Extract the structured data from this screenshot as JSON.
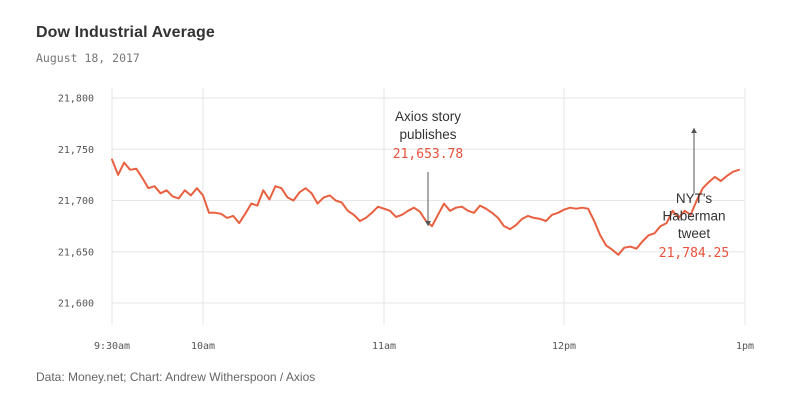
{
  "header": {
    "title": "Dow Industrial Average",
    "subtitle": "August 18, 2017"
  },
  "footer": {
    "source": "Data: Money.net; Chart: Andrew Witherspoon / Axios"
  },
  "colors": {
    "line": "#e8603f",
    "accent_text": "#e8513a",
    "grid": "#e6e6e6"
  },
  "chart_data": {
    "type": "line",
    "title": "Dow Industrial Average",
    "subtitle": "August 18, 2017",
    "ylim": [
      21580,
      21810
    ],
    "grid": true,
    "y_ticks": [
      {
        "value": 21600,
        "label": "21,600"
      },
      {
        "value": 21650,
        "label": "21,650"
      },
      {
        "value": 21700,
        "label": "21,700"
      },
      {
        "value": 21750,
        "label": "21,750"
      },
      {
        "value": 21800,
        "label": "21,800"
      }
    ],
    "x_ticks": [
      {
        "value": "09:30",
        "label": "9:30am"
      },
      {
        "value": "10:00",
        "label": "10am"
      },
      {
        "value": "11:00",
        "label": "11am"
      },
      {
        "value": "12:00",
        "label": "12pm"
      },
      {
        "value": "13:00",
        "label": "1pm"
      }
    ],
    "xlim": [
      "09:30",
      "13:00"
    ],
    "series": [
      {
        "values": [
          [
            "09:30",
            21740
          ],
          [
            "09:32",
            21725
          ],
          [
            "09:34",
            21737
          ],
          [
            "09:36",
            21730
          ],
          [
            "09:38",
            21731
          ],
          [
            "09:40",
            21722
          ],
          [
            "09:42",
            21712
          ],
          [
            "09:44",
            21714
          ],
          [
            "09:46",
            21707
          ],
          [
            "09:48",
            21710
          ],
          [
            "09:50",
            21704
          ],
          [
            "09:52",
            21702
          ],
          [
            "09:54",
            21710
          ],
          [
            "09:56",
            21705
          ],
          [
            "09:58",
            21712
          ],
          [
            "10:00",
            21705
          ],
          [
            "10:02",
            21688
          ],
          [
            "10:04",
            21688
          ],
          [
            "10:06",
            21687
          ],
          [
            "10:08",
            21683
          ],
          [
            "10:10",
            21685
          ],
          [
            "10:12",
            21678
          ],
          [
            "10:14",
            21687
          ],
          [
            "10:16",
            21697
          ],
          [
            "10:18",
            21695
          ],
          [
            "10:20",
            21710
          ],
          [
            "10:22",
            21701
          ],
          [
            "10:24",
            21714
          ],
          [
            "10:26",
            21712
          ],
          [
            "10:28",
            21703
          ],
          [
            "10:30",
            21700
          ],
          [
            "10:32",
            21708
          ],
          [
            "10:34",
            21712
          ],
          [
            "10:36",
            21707
          ],
          [
            "10:38",
            21697
          ],
          [
            "10:40",
            21703
          ],
          [
            "10:42",
            21705
          ],
          [
            "10:44",
            21700
          ],
          [
            "10:46",
            21698
          ],
          [
            "10:48",
            21690
          ],
          [
            "10:50",
            21686
          ],
          [
            "10:52",
            21680
          ],
          [
            "10:54",
            21683
          ],
          [
            "10:56",
            21688
          ],
          [
            "10:58",
            21694
          ],
          [
            "11:00",
            21692
          ],
          [
            "11:02",
            21690
          ],
          [
            "11:04",
            21684
          ],
          [
            "11:06",
            21686
          ],
          [
            "11:08",
            21690
          ],
          [
            "11:10",
            21693
          ],
          [
            "11:12",
            21689
          ],
          [
            "11:14",
            21680
          ],
          [
            "11:16",
            21675
          ],
          [
            "11:18",
            21686
          ],
          [
            "11:20",
            21697
          ],
          [
            "11:22",
            21690
          ],
          [
            "11:24",
            21693
          ],
          [
            "11:26",
            21694
          ],
          [
            "11:28",
            21690
          ],
          [
            "11:30",
            21688
          ],
          [
            "11:32",
            21695
          ],
          [
            "11:34",
            21692
          ],
          [
            "11:36",
            21688
          ],
          [
            "11:38",
            21683
          ],
          [
            "11:40",
            21675
          ],
          [
            "11:42",
            21672
          ],
          [
            "11:44",
            21676
          ],
          [
            "11:46",
            21682
          ],
          [
            "11:48",
            21685
          ],
          [
            "11:50",
            21683
          ],
          [
            "11:52",
            21682
          ],
          [
            "11:54",
            21680
          ],
          [
            "11:56",
            21686
          ],
          [
            "11:58",
            21688
          ],
          [
            "12:00",
            21691
          ],
          [
            "12:02",
            21693
          ],
          [
            "12:04",
            21692
          ],
          [
            "12:06",
            21693
          ],
          [
            "12:08",
            21692
          ],
          [
            "12:10",
            21680
          ],
          [
            "12:12",
            21666
          ],
          [
            "12:14",
            21656
          ],
          [
            "12:16",
            21652
          ],
          [
            "12:18",
            21647
          ],
          [
            "12:20",
            21654
          ],
          [
            "12:22",
            21655
          ],
          [
            "12:24",
            21653
          ],
          [
            "12:26",
            21660
          ],
          [
            "12:28",
            21666
          ],
          [
            "12:30",
            21668
          ],
          [
            "12:32",
            21675
          ],
          [
            "12:34",
            21678
          ],
          [
            "12:36",
            21690
          ],
          [
            "12:38",
            21683
          ],
          [
            "12:40",
            21690
          ],
          [
            "12:42",
            21686
          ],
          [
            "12:44",
            21700
          ],
          [
            "12:46",
            21712
          ],
          [
            "12:48",
            21718
          ],
          [
            "12:50",
            21723
          ],
          [
            "12:52",
            21719
          ],
          [
            "12:54",
            21724
          ],
          [
            "12:56",
            21728
          ],
          [
            "12:58",
            21730
          ]
        ]
      }
    ],
    "annotations": [
      {
        "label_lines": [
          "Axios story",
          "publishes"
        ],
        "value_text": "21,653.78"
      },
      {
        "label_lines": [
          "NYT's",
          "Haberman",
          "tweet"
        ],
        "value_text": "21,784.25"
      }
    ]
  }
}
